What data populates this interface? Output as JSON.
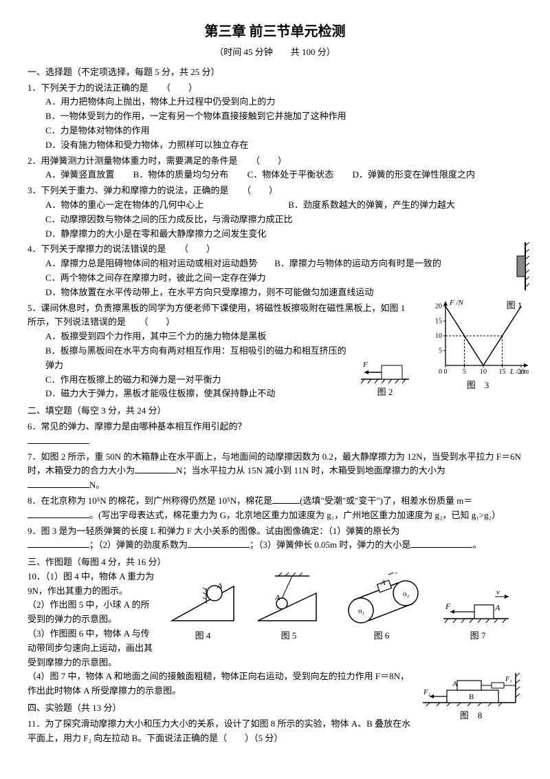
{
  "title": "第三章 前三节单元检测",
  "subtitle": "（时间 45 分钟　　共 100 分）",
  "s1": {
    "header": "一、选择题（不定项选择，每题 5 分，共 25 分）",
    "q1": {
      "stem": "1．下列关于力的说法正确的是　　（　　）",
      "A": "A．用力把物体向上抛出，物体上升过程中仍受到向上的力",
      "B": "B．一物体受到力的作用，一定有另一个物体直接接触到它并施加了这种作用",
      "C": "C．力是物体对物体的作用",
      "D": "D．没有施力物体和受力物体，力照样可以独立存在"
    },
    "q2": {
      "stem": "2．用弹簧测力计测量物体重力时，需要满足的条件是　　（　　）",
      "A": "A．弹簧竖直放置",
      "B": "B．物体的质量均匀分布",
      "C": "C．物体处于平衡状态",
      "D": "D．弹簧的形变在弹性限度之内"
    },
    "q3": {
      "stem": "3．下列关于重力、弹力和摩擦力的说法，正确的是　　（　　）",
      "A": "A．物体的重心一定在物体的几何中心上",
      "B": "B．劲度系数越大的弹簧，产生的弹力越大",
      "C": "C．动摩擦因数与物体之间的压力成反比，与滑动摩擦力成正比",
      "D": "D．静摩擦力的大小是在零和最大静摩擦力之间发生变化"
    },
    "q4": {
      "stem": "4．下列关于摩擦力的说法错误的是　　（　　）",
      "A": "A．摩擦力总是阻碍物体间的相对运动或相对运动趋势",
      "B": "B．摩擦力与物体的运动方向有时是一致的",
      "C": "C．两个物体之间存在摩擦力时，彼此之间一定存在弹力",
      "D": "D．物体放置在水平传动带上，在水平方向只受摩擦力，则不可能做匀加速直线运动"
    },
    "q5": {
      "stem": "5．课间休息时，负责擦黑板的同学为方便老师下课使用，将磁性板擦吸附在磁性黑板上，如图 1 所示，下列说法错误的是　　（　　）",
      "A": "A．板擦受到四个力作用，其中三个力的施力物体是黑板",
      "B": "B．板擦与黑板间在水平方向有两对相互作用：互相吸引的磁力和相互挤压的弹力",
      "C": "C．作用在板擦上的磁力和弹力是一对平衡力",
      "D": "D．磁力大于弹力，黑板才能吸住板擦，使其保持静止不动"
    }
  },
  "s2": {
    "header": "二、填空题（每空 3 分，共 24 分）",
    "q6": "6．常见的弹力、摩擦力是由哪种基本相互作用引起的？",
    "q7a": "7．如图 2 所示，重 50N 的木箱静止在水平面上，与地面间的动摩擦因数为 0.2，最大静摩擦力为 12N，当受到水平拉力 F＝6N 时，木箱受力的合力大小为",
    "q7b": "N；当水平拉力从 15N 减小到 11N 时，木箱受到地面摩擦力的大小为",
    "q7c": "N。",
    "q8a": "8．在北京称为 10⁵N 的棉花，到广州称得仍然是 10⁵N，棉花是",
    "q8b": "(选填\"受潮\"或\"变干\")了，相差水份质量 m＝",
    "q8c": "。(写出字母表达式，棉花重力为 G，北京地区重力加速度为 g₁，广州地区重力加速度为 g₂，已知 g₁>g₂）",
    "q9a": "9．图 3 是为一轻质弹簧的长度 L 和弹力 F 大小关系的图像。试由图像确定：（1）弹簧的原长为",
    "q9b": "；（2）弹簧的劲度系数为",
    "q9c": "；（3）弹簧伸长 0.05m 时，弹力的大小是",
    "q9d": "。"
  },
  "s3": {
    "header": "三、作图题（每图 4 分，共 16 分）",
    "q10_1": "10．（1）图 4 中，物体 A 重力为 9N，作出其重力的图示。",
    "q10_2": "（2）作出图 5 中，小球 A 的所受到的弹力的示意图。",
    "q10_3": "（3）作图图 6 中，物体 A 与传动带同步匀速向上运动，画出其受到摩擦力的示意图。",
    "q10_4": "（4）图 7 中，物体 A 和地面之间的接触面粗糙，物体正向右运动，受到向左的拉力作用 F＝8N，作出此时物体 A 所受摩擦力的示意图。"
  },
  "s4": {
    "header": "四、实验题（共 13 分）",
    "q11": "11．为了探究滑动摩擦力大小和压力大小的关系，设计了如图 8 所示的实验，物体 A、B 叠放在水平面上，用力 F₂ 向左拉动 B。下面说法正确的是（　　）（5 分）"
  },
  "figlabels": {
    "f1": "图 1",
    "f2": "图 2",
    "f3": "图　3",
    "f4": "图 4",
    "f5": "图 5",
    "f6": "图 6",
    "f7": "图 7",
    "f8": "图　8"
  },
  "chart3": {
    "xlabel": "L / cm",
    "ylabel": "F /N",
    "xticks": [
      0,
      5,
      10,
      15,
      20
    ],
    "yticks": [
      5,
      10,
      15,
      20
    ],
    "pts": [
      [
        0,
        20
      ],
      [
        10,
        0
      ],
      [
        20,
        20
      ]
    ],
    "dashx": [
      5,
      15
    ],
    "dashy": 10,
    "axis_color": "#000",
    "line_color": "#000",
    "dash_color": "#000"
  }
}
